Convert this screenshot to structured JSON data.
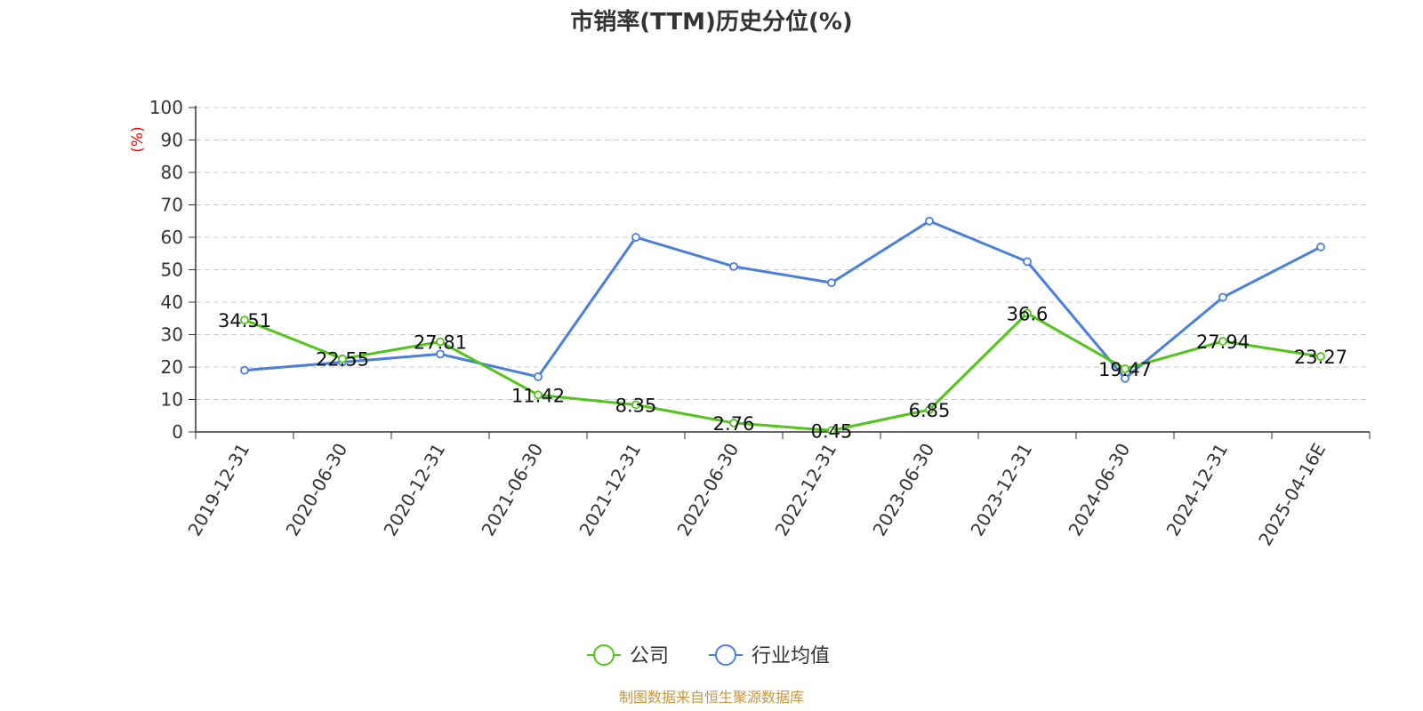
{
  "chart_data": {
    "type": "line",
    "title": "市销率(TTM)历史分位(%)",
    "ylabel": "(%)",
    "xlabel": "",
    "ylim": [
      0,
      100
    ],
    "y_ticks": [
      "0",
      "10",
      "20",
      "30",
      "40",
      "50",
      "60",
      "70",
      "80",
      "90",
      "100"
    ],
    "grid": true,
    "legend_position": "bottom-center",
    "categories": [
      "2019-12-31",
      "2020-06-30",
      "2020-12-31",
      "2021-06-30",
      "2021-12-31",
      "2022-06-30",
      "2022-12-31",
      "2023-06-30",
      "2023-12-31",
      "2024-06-30",
      "2024-12-31",
      "2025-04-16E"
    ],
    "series": [
      {
        "name": "公司",
        "color": "#52c41a",
        "values": [
          34.51,
          22.55,
          27.81,
          11.42,
          8.35,
          2.76,
          0.45,
          6.85,
          36.6,
          19.47,
          27.94,
          23.27
        ],
        "labels": [
          "34.51",
          "22.55",
          "27.81",
          "11.42",
          "8.35",
          "2.76",
          "0.45",
          "6.85",
          "36.6",
          "19.47",
          "27.94",
          "23.27"
        ]
      },
      {
        "name": "行业均值",
        "color": "#4a7fdc",
        "values": [
          19,
          21.5,
          24,
          17,
          60,
          51,
          46,
          65,
          52.5,
          16.5,
          41.5,
          57
        ]
      }
    ],
    "source": "制图数据来自恒生聚源数据库",
    "source_color": "#c8963e",
    "ylabel_color": "#ff0000"
  }
}
